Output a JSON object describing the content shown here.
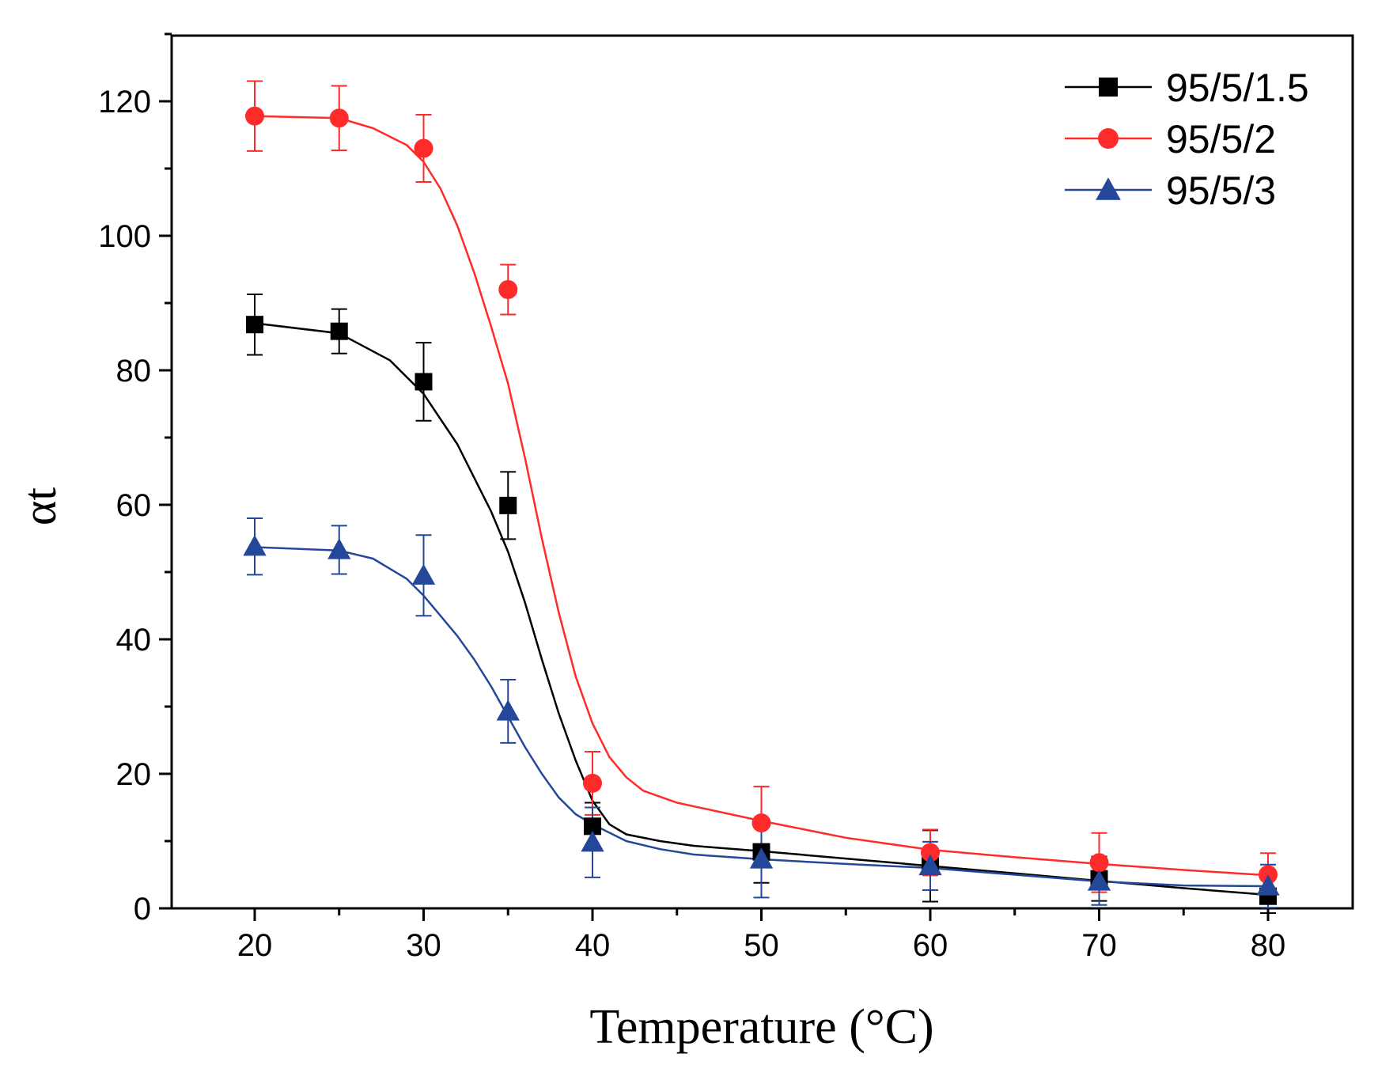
{
  "chart_data": {
    "type": "scatter",
    "title": "",
    "xlabel": "Temperature (°C)",
    "ylabel": "αt",
    "xlim": [
      15,
      85
    ],
    "ylim": [
      0,
      130
    ],
    "xticks": [
      20,
      30,
      40,
      50,
      60,
      70,
      80
    ],
    "yticks": [
      0,
      20,
      40,
      60,
      80,
      100,
      120
    ],
    "grid": false,
    "legend_position": "top-right",
    "series": [
      {
        "name": "95/5/1.5",
        "color": "#000000",
        "marker": "square",
        "x": [
          20,
          25,
          30,
          35,
          40,
          50,
          60,
          70,
          80
        ],
        "y": [
          86.8,
          85.8,
          78.3,
          59.9,
          12.2,
          8.4,
          6.3,
          4.4,
          1.8
        ],
        "error": [
          4.5,
          3.3,
          5.8,
          5.0,
          3.5,
          4.6,
          5.3,
          3.3,
          2.5
        ],
        "fit": [
          [
            20,
            87.0
          ],
          [
            25,
            85.5
          ],
          [
            28,
            81.5
          ],
          [
            30,
            76.5
          ],
          [
            32,
            69.0
          ],
          [
            34,
            59.0
          ],
          [
            35,
            53.0
          ],
          [
            36,
            45.5
          ],
          [
            37,
            37.0
          ],
          [
            38,
            29.0
          ],
          [
            39,
            22.0
          ],
          [
            40,
            16.0
          ],
          [
            41,
            12.5
          ],
          [
            42,
            11.0
          ],
          [
            44,
            10.0
          ],
          [
            46,
            9.3
          ],
          [
            50,
            8.5
          ],
          [
            55,
            7.4
          ],
          [
            60,
            6.3
          ],
          [
            65,
            5.2
          ],
          [
            70,
            4.1
          ],
          [
            75,
            3.0
          ],
          [
            80,
            2.0
          ]
        ]
      },
      {
        "name": "95/5/2",
        "color": "#ff2a2a",
        "marker": "circle",
        "x": [
          20,
          25,
          30,
          35,
          40,
          50,
          60,
          70,
          80
        ],
        "y": [
          117.8,
          117.5,
          113.0,
          92.0,
          18.6,
          12.7,
          8.3,
          6.8,
          5.0
        ],
        "error": [
          5.2,
          4.8,
          5.0,
          3.7,
          4.7,
          5.4,
          3.4,
          4.4,
          3.2
        ],
        "fit": [
          [
            20,
            117.8
          ],
          [
            25,
            117.5
          ],
          [
            27,
            116.0
          ],
          [
            29,
            113.5
          ],
          [
            30,
            111.0
          ],
          [
            31,
            107.0
          ],
          [
            32,
            101.5
          ],
          [
            33,
            94.5
          ],
          [
            34,
            86.5
          ],
          [
            35,
            78.0
          ],
          [
            36,
            67.0
          ],
          [
            37,
            55.0
          ],
          [
            38,
            44.0
          ],
          [
            39,
            34.5
          ],
          [
            40,
            27.5
          ],
          [
            41,
            22.5
          ],
          [
            42,
            19.5
          ],
          [
            43,
            17.5
          ],
          [
            45,
            15.7
          ],
          [
            50,
            13.0
          ],
          [
            55,
            10.5
          ],
          [
            60,
            8.7
          ],
          [
            65,
            7.6
          ],
          [
            70,
            6.6
          ],
          [
            75,
            5.7
          ],
          [
            80,
            4.9
          ]
        ]
      },
      {
        "name": "95/5/3",
        "color": "#25479a",
        "marker": "triangle",
        "x": [
          20,
          25,
          30,
          35,
          40,
          50,
          60,
          70,
          80
        ],
        "y": [
          53.8,
          53.3,
          49.5,
          29.3,
          9.8,
          7.3,
          6.3,
          4.0,
          3.3
        ],
        "error": [
          4.2,
          3.6,
          6.0,
          4.7,
          5.2,
          5.7,
          3.6,
          3.5,
          3.2
        ],
        "fit": [
          [
            20,
            53.7
          ],
          [
            25,
            53.2
          ],
          [
            27,
            52.0
          ],
          [
            29,
            49.0
          ],
          [
            30,
            46.5
          ],
          [
            31,
            43.5
          ],
          [
            32,
            40.5
          ],
          [
            33,
            37.0
          ],
          [
            34,
            33.0
          ],
          [
            35,
            28.5
          ],
          [
            36,
            24.0
          ],
          [
            37,
            20.0
          ],
          [
            38,
            16.5
          ],
          [
            39,
            14.0
          ],
          [
            40,
            12.5
          ],
          [
            42,
            10.0
          ],
          [
            44,
            8.8
          ],
          [
            46,
            8.0
          ],
          [
            50,
            7.3
          ],
          [
            55,
            6.6
          ],
          [
            60,
            6.0
          ],
          [
            65,
            5.0
          ],
          [
            70,
            4.0
          ],
          [
            75,
            3.4
          ],
          [
            80,
            3.3
          ]
        ]
      }
    ]
  }
}
